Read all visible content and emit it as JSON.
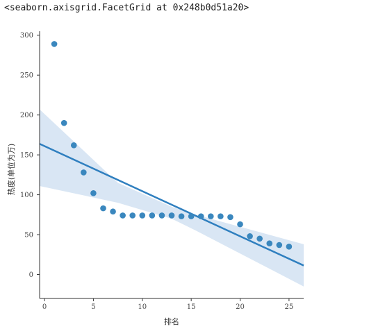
{
  "output_repr": "<seaborn.axisgrid.FacetGrid at 0x248b0d51a20>",
  "colors": {
    "point": "#3a87be",
    "line": "#2f7fbf",
    "band": "#c9dcef",
    "axis": "#333333"
  },
  "chart_data": {
    "type": "scatter",
    "title": "",
    "xlabel": "排名",
    "ylabel": "热度(单位为万)",
    "xlim": [
      -0.5,
      26.5
    ],
    "ylim": [
      -30,
      305
    ],
    "xticks": [
      0,
      5,
      10,
      15,
      20,
      25
    ],
    "yticks": [
      0,
      50,
      100,
      150,
      200,
      250,
      300
    ],
    "x": [
      1,
      2,
      3,
      4,
      5,
      6,
      7,
      8,
      9,
      10,
      11,
      12,
      13,
      14,
      15,
      16,
      17,
      18,
      19,
      20,
      21,
      22,
      23,
      24,
      25
    ],
    "y": [
      289,
      190,
      162,
      128,
      102,
      83,
      79,
      74,
      74,
      74,
      74,
      74,
      74,
      73,
      73,
      73,
      73,
      73,
      72,
      63,
      48,
      45,
      39,
      37,
      35
    ],
    "regression": {
      "x_range": [
        -0.5,
        26.5
      ],
      "intercept": 161,
      "slope": -5.65
    },
    "ci_band": {
      "x": [
        -0.5,
        7.5,
        13,
        15.5,
        26.5
      ],
      "lower": [
        111,
        90,
        70,
        55,
        -15
      ],
      "upper": [
        207,
        115,
        85,
        75,
        38
      ]
    }
  }
}
